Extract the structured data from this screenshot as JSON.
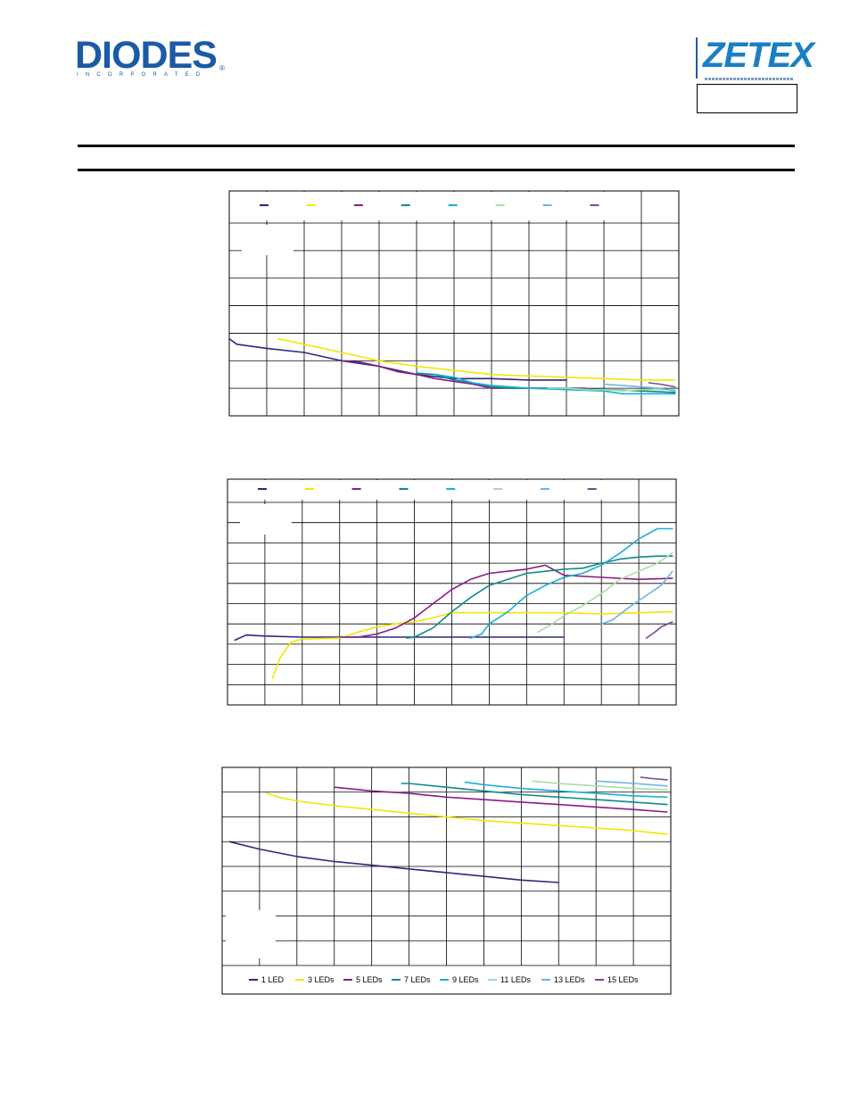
{
  "header": {
    "diodes_logo": {
      "word": "DIODES",
      "sub": "INCORPORATED",
      "registered": "®",
      "color": "#1c5aa6"
    },
    "zetex_logo": {
      "word": "ZETEX",
      "color": "#1c7fc4"
    }
  },
  "chart_data": [
    {
      "type": "line",
      "legend": {
        "placement": "top",
        "labels_printed": false
      },
      "x": {
        "range": [
          0,
          12
        ],
        "divisions": 12
      },
      "y": {
        "range": [
          0,
          7
        ],
        "divisions": 7
      },
      "grid": true,
      "series": [
        {
          "color": "#2b2a7c",
          "points": [
            [
              0,
              2.8
            ],
            [
              0.2,
              2.6
            ],
            [
              1,
              2.45
            ],
            [
              2,
              2.3
            ],
            [
              3,
              2.0
            ],
            [
              4,
              1.8
            ],
            [
              5,
              1.5
            ],
            [
              6,
              1.35
            ],
            [
              7,
              1.35
            ],
            [
              8,
              1.3
            ],
            [
              8.3,
              1.3
            ],
            [
              9,
              1.3
            ]
          ]
        },
        {
          "color": "#f3e600",
          "points": [
            [
              1.3,
              2.8
            ],
            [
              2,
              2.6
            ],
            [
              3,
              2.3
            ],
            [
              4,
              2.0
            ],
            [
              5,
              1.8
            ],
            [
              6,
              1.65
            ],
            [
              7,
              1.5
            ],
            [
              8,
              1.45
            ],
            [
              9,
              1.4
            ],
            [
              10,
              1.35
            ],
            [
              11,
              1.3
            ],
            [
              11.9,
              1.3
            ]
          ]
        },
        {
          "color": "#8b1a87",
          "points": [
            [
              3,
              2.0
            ],
            [
              3.5,
              1.95
            ],
            [
              4,
              1.8
            ],
            [
              4.5,
              1.6
            ],
            [
              5,
              1.5
            ],
            [
              5.5,
              1.35
            ],
            [
              6,
              1.25
            ],
            [
              6.5,
              1.15
            ],
            [
              7,
              1.0
            ],
            [
              8,
              1.0
            ],
            [
              9,
              1.0
            ],
            [
              9.5,
              1.0
            ]
          ]
        },
        {
          "color": "#0e8a8c",
          "points": [
            [
              5,
              1.55
            ],
            [
              5.5,
              1.5
            ],
            [
              6,
              1.3
            ],
            [
              6.5,
              1.2
            ],
            [
              7,
              1.05
            ],
            [
              7.5,
              1.0
            ],
            [
              8,
              1.0
            ],
            [
              9,
              1.0
            ],
            [
              10,
              0.95
            ],
            [
              11,
              0.9
            ],
            [
              11.9,
              0.85
            ]
          ]
        },
        {
          "color": "#1ab0d8",
          "points": [
            [
              5.5,
              1.5
            ],
            [
              6,
              1.4
            ],
            [
              6.5,
              1.2
            ],
            [
              7,
              1.1
            ],
            [
              7.5,
              1.05
            ],
            [
              8,
              1.0
            ],
            [
              9,
              0.95
            ],
            [
              10,
              0.9
            ],
            [
              10.5,
              0.8
            ],
            [
              11,
              0.8
            ],
            [
              11.9,
              0.8
            ]
          ]
        },
        {
          "color": "#a8dca8",
          "points": [
            [
              8.5,
              1.0
            ],
            [
              9,
              1.0
            ],
            [
              9.5,
              0.95
            ],
            [
              10,
              0.95
            ],
            [
              10.5,
              0.9
            ],
            [
              11,
              0.95
            ],
            [
              11.9,
              0.95
            ]
          ]
        },
        {
          "color": "#6fb4e8",
          "points": [
            [
              10,
              1.15
            ],
            [
              10.5,
              1.1
            ],
            [
              11,
              1.05
            ],
            [
              11.5,
              1.0
            ],
            [
              11.9,
              0.9
            ]
          ]
        },
        {
          "color": "#7a4a94",
          "points": [
            [
              11.2,
              1.2
            ],
            [
              11.5,
              1.15
            ],
            [
              11.9,
              1.05
            ]
          ]
        }
      ]
    },
    {
      "type": "line",
      "legend": {
        "placement": "top",
        "labels_printed": false
      },
      "x": {
        "range": [
          0,
          12
        ],
        "divisions": 12
      },
      "y": {
        "range": [
          0,
          10
        ],
        "divisions": 10
      },
      "grid": true,
      "series": [
        {
          "color": "#2b2a7c",
          "points": [
            [
              0.2,
              3.2
            ],
            [
              0.5,
              3.45
            ],
            [
              1,
              3.4
            ],
            [
              2,
              3.35
            ],
            [
              3,
              3.35
            ],
            [
              4,
              3.35
            ],
            [
              5,
              3.35
            ],
            [
              6,
              3.35
            ],
            [
              7,
              3.35
            ],
            [
              8,
              3.35
            ],
            [
              9,
              3.35
            ]
          ]
        },
        {
          "color": "#f3e600",
          "points": [
            [
              1.2,
              1.3
            ],
            [
              1.4,
              2.3
            ],
            [
              1.7,
              3.1
            ],
            [
              2,
              3.25
            ],
            [
              3,
              3.3
            ],
            [
              3.5,
              3.6
            ],
            [
              4,
              3.85
            ],
            [
              4.5,
              4.0
            ],
            [
              5,
              4.1
            ],
            [
              5.5,
              4.3
            ],
            [
              6,
              4.55
            ],
            [
              7,
              4.55
            ],
            [
              8,
              4.55
            ],
            [
              9,
              4.55
            ],
            [
              10,
              4.5
            ],
            [
              11,
              4.55
            ],
            [
              11.9,
              4.6
            ]
          ]
        },
        {
          "color": "#8b1a87",
          "points": [
            [
              3,
              3.35
            ],
            [
              3.5,
              3.35
            ],
            [
              4,
              3.5
            ],
            [
              4.5,
              3.8
            ],
            [
              5,
              4.3
            ],
            [
              5.5,
              5.0
            ],
            [
              6,
              5.7
            ],
            [
              6.5,
              6.2
            ],
            [
              7,
              6.5
            ],
            [
              7.5,
              6.6
            ],
            [
              8,
              6.7
            ],
            [
              8.5,
              6.9
            ],
            [
              9,
              6.4
            ],
            [
              10,
              6.3
            ],
            [
              11,
              6.2
            ],
            [
              11.9,
              6.25
            ]
          ]
        },
        {
          "color": "#0e8a8c",
          "points": [
            [
              4.8,
              3.3
            ],
            [
              5,
              3.35
            ],
            [
              5.5,
              3.8
            ],
            [
              6,
              4.6
            ],
            [
              6.5,
              5.3
            ],
            [
              7,
              5.9
            ],
            [
              7.5,
              6.2
            ],
            [
              8,
              6.5
            ],
            [
              8.5,
              6.6
            ],
            [
              9,
              6.7
            ],
            [
              9.5,
              6.75
            ],
            [
              10,
              7.0
            ],
            [
              10.5,
              7.2
            ],
            [
              11,
              7.3
            ],
            [
              11.5,
              7.35
            ],
            [
              11.9,
              7.35
            ]
          ]
        },
        {
          "color": "#1ab0d8",
          "points": [
            [
              6.5,
              3.3
            ],
            [
              6.8,
              3.5
            ],
            [
              7,
              4.0
            ],
            [
              7.5,
              4.6
            ],
            [
              8,
              5.4
            ],
            [
              8.5,
              5.9
            ],
            [
              9,
              6.3
            ],
            [
              9.5,
              6.5
            ],
            [
              10,
              6.9
            ],
            [
              10.5,
              7.5
            ],
            [
              11,
              8.2
            ],
            [
              11.5,
              8.7
            ],
            [
              11.9,
              8.7
            ]
          ]
        },
        {
          "color": "#a8dca8",
          "points": [
            [
              8.3,
              3.6
            ],
            [
              8.6,
              3.9
            ],
            [
              9,
              4.4
            ],
            [
              9.5,
              4.9
            ],
            [
              10,
              5.5
            ],
            [
              10.5,
              6.2
            ],
            [
              11,
              6.6
            ],
            [
              11.5,
              7.0
            ],
            [
              11.9,
              7.5
            ]
          ]
        },
        {
          "color": "#6fb4e8",
          "points": [
            [
              10,
              4.0
            ],
            [
              10.3,
              4.2
            ],
            [
              10.8,
              4.9
            ],
            [
              11.2,
              5.4
            ],
            [
              11.6,
              5.9
            ],
            [
              11.9,
              6.6
            ]
          ]
        },
        {
          "color": "#7a4a94",
          "points": [
            [
              11.2,
              3.3
            ],
            [
              11.4,
              3.55
            ],
            [
              11.6,
              3.85
            ],
            [
              11.9,
              4.1
            ]
          ]
        }
      ]
    },
    {
      "type": "line",
      "legend": {
        "placement": "bottom",
        "entries": [
          {
            "name": "1 LED",
            "color": "#2b2a7c"
          },
          {
            "name": "3 LEDs",
            "color": "#f3e600"
          },
          {
            "name": "5 LEDs",
            "color": "#8b1a87"
          },
          {
            "name": "7 LEDs",
            "color": "#0e8a8c"
          },
          {
            "name": "9 LEDs",
            "color": "#1ab0d8"
          },
          {
            "name": "11 LEDs",
            "color": "#a8dca8"
          },
          {
            "name": "13 LEDs",
            "color": "#6fb4e8"
          },
          {
            "name": "15 LEDs",
            "color": "#7a4a94"
          }
        ]
      },
      "x": {
        "range": [
          0,
          12
        ],
        "divisions": 12
      },
      "y": {
        "range": [
          0,
          8
        ],
        "divisions": 8
      },
      "grid": true,
      "series": [
        {
          "name": "1 LED",
          "color": "#2b2a7c",
          "points": [
            [
              0.2,
              5.0
            ],
            [
              1,
              4.7
            ],
            [
              2,
              4.4
            ],
            [
              3,
              4.2
            ],
            [
              4,
              4.05
            ],
            [
              5,
              3.9
            ],
            [
              6,
              3.75
            ],
            [
              7,
              3.6
            ],
            [
              8,
              3.45
            ],
            [
              9,
              3.35
            ]
          ]
        },
        {
          "name": "3 LEDs",
          "color": "#f3e600",
          "points": [
            [
              1.2,
              6.95
            ],
            [
              1.5,
              6.8
            ],
            [
              2,
              6.65
            ],
            [
              3,
              6.45
            ],
            [
              4,
              6.3
            ],
            [
              5,
              6.15
            ],
            [
              6,
              6.0
            ],
            [
              7,
              5.85
            ],
            [
              8,
              5.75
            ],
            [
              9,
              5.65
            ],
            [
              10,
              5.55
            ],
            [
              11,
              5.45
            ],
            [
              11.9,
              5.3
            ]
          ]
        },
        {
          "name": "5 LEDs",
          "color": "#8b1a87",
          "points": [
            [
              3,
              7.2
            ],
            [
              4,
              7.05
            ],
            [
              5,
              6.95
            ],
            [
              6,
              6.8
            ],
            [
              7,
              6.7
            ],
            [
              8,
              6.6
            ],
            [
              9,
              6.5
            ],
            [
              10,
              6.4
            ],
            [
              11,
              6.3
            ],
            [
              11.9,
              6.2
            ]
          ]
        },
        {
          "name": "7 LEDs",
          "color": "#0e8a8c",
          "points": [
            [
              4.8,
              7.35
            ],
            [
              5,
              7.35
            ],
            [
              6,
              7.2
            ],
            [
              7,
              7.05
            ],
            [
              8,
              6.9
            ],
            [
              9,
              6.8
            ],
            [
              10,
              6.7
            ],
            [
              11,
              6.6
            ],
            [
              11.9,
              6.5
            ]
          ]
        },
        {
          "name": "9 LEDs",
          "color": "#1ab0d8",
          "points": [
            [
              6.5,
              7.4
            ],
            [
              7,
              7.3
            ],
            [
              8,
              7.15
            ],
            [
              9,
              7.05
            ],
            [
              10,
              6.95
            ],
            [
              11,
              6.85
            ],
            [
              11.9,
              6.8
            ]
          ]
        },
        {
          "name": "11 LEDs",
          "color": "#a8dca8",
          "points": [
            [
              8.3,
              7.45
            ],
            [
              9,
              7.35
            ],
            [
              10,
              7.25
            ],
            [
              11,
              7.15
            ],
            [
              11.9,
              7.1
            ]
          ]
        },
        {
          "name": "13 LEDs",
          "color": "#6fb4e8",
          "points": [
            [
              10,
              7.45
            ],
            [
              10.5,
              7.4
            ],
            [
              11,
              7.35
            ],
            [
              11.9,
              7.25
            ]
          ]
        },
        {
          "name": "15 LEDs",
          "color": "#7a4a94",
          "points": [
            [
              11.2,
              7.6
            ],
            [
              11.5,
              7.55
            ],
            [
              11.9,
              7.5
            ]
          ]
        }
      ]
    }
  ]
}
